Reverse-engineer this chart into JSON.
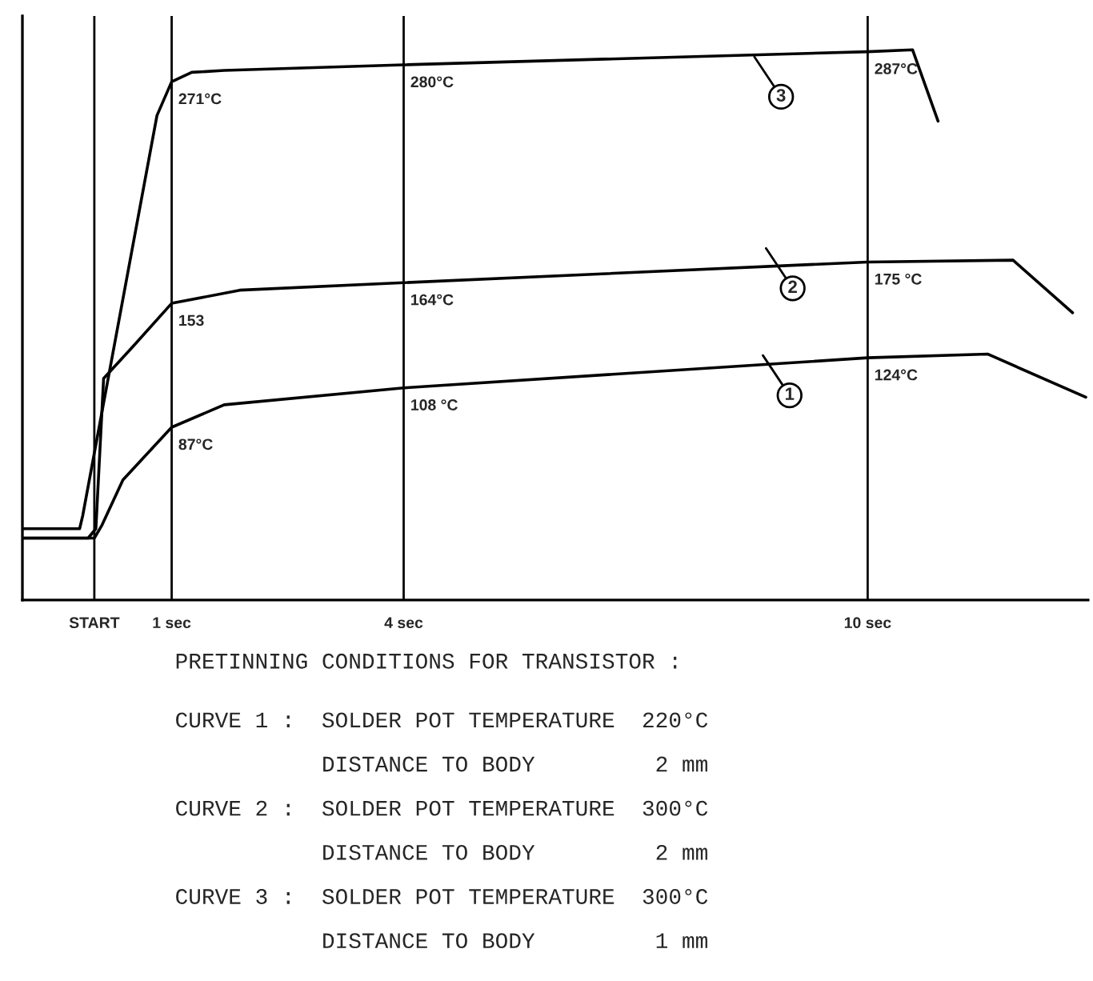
{
  "chart_data": {
    "type": "line",
    "xlim": [
      -0.93,
      12.85
    ],
    "ylim": [
      -5,
      306
    ],
    "xticks": [
      {
        "value": 0,
        "label": "START"
      },
      {
        "value": 1,
        "label": "1 sec"
      },
      {
        "value": 4,
        "label": "4 sec"
      },
      {
        "value": 10,
        "label": "10 sec"
      }
    ],
    "tick_labels": "x",
    "grid": "x",
    "marker": "none",
    "line_style": "solid",
    "series": [
      {
        "color": "#000000",
        "x": [
          -0.93,
          0.0,
          0.1,
          0.37,
          1,
          1.68,
          4,
          10,
          11.55,
          12.82
        ],
        "values": [
          28,
          28,
          35,
          59,
          87,
          99,
          108,
          124,
          126,
          103
        ],
        "value_labels": [
          null,
          null,
          null,
          null,
          "87°C",
          null,
          "108 °C",
          "124°C",
          null,
          null
        ]
      },
      {
        "color": "#000000",
        "x": [
          -0.93,
          -0.08,
          0.02,
          0.12,
          0.5,
          1,
          1.88,
          4,
          10,
          11.88,
          12.65
        ],
        "values": [
          28,
          28,
          33,
          113,
          130,
          153,
          160,
          164,
          175,
          176,
          148
        ],
        "value_labels": [
          null,
          null,
          null,
          null,
          null,
          "153",
          null,
          "164°C",
          "175 °C",
          null,
          null
        ]
      },
      {
        "color": "#000000",
        "x": [
          -0.93,
          -0.19,
          -0.15,
          0.81,
          1,
          1.26,
          1.68,
          4,
          10,
          10.58,
          10.91
        ],
        "values": [
          33,
          33,
          40,
          253,
          271,
          276,
          277,
          280,
          287,
          288,
          250
        ],
        "value_labels": [
          null,
          null,
          null,
          null,
          "271°C",
          null,
          null,
          "280°C",
          "287°C",
          null,
          null
        ]
      }
    ],
    "annotations": [
      {
        "text": "1",
        "x": 8.99,
        "y": 104
      },
      {
        "text": "2",
        "x": 9.03,
        "y": 161
      },
      {
        "text": "3",
        "x": 8.88,
        "y": 263
      },
      "PRETINNING CONDITIONS FOR TRANSISTOR :",
      "CURVE 1 :  SOLDER POT TEMPERATURE  220°C",
      "           DISTANCE TO BODY         2 mm",
      "CURVE 2 :  SOLDER POT TEMPERATURE  300°C",
      "           DISTANCE TO BODY         2 mm",
      "CURVE 3 :  SOLDER POT TEMPERATURE  300°C",
      "           DISTANCE TO BODY         1 mm"
    ]
  }
}
